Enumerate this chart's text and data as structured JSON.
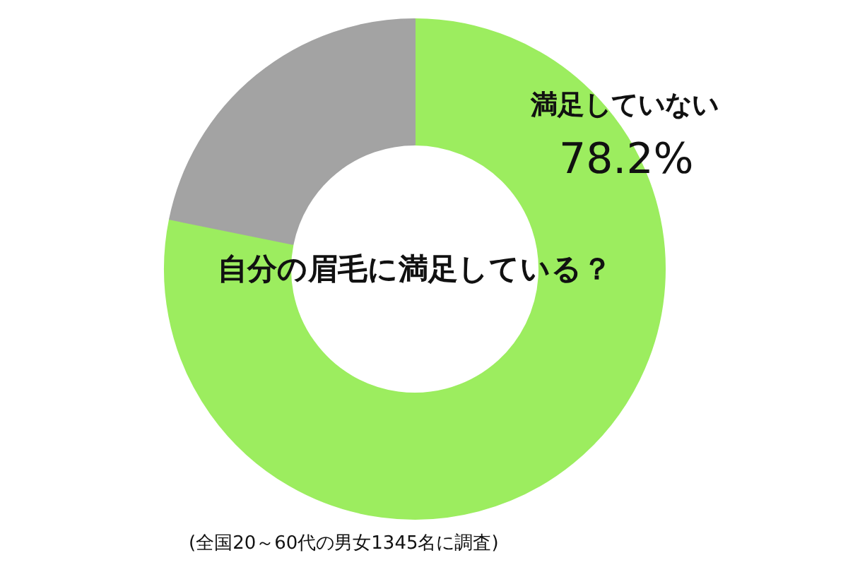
{
  "chart_data": {
    "type": "donut",
    "title": "自分の眉毛に満足している？",
    "categories": [
      "満足していない",
      null
    ],
    "values": [
      78.2,
      21.8
    ],
    "colors": [
      "#9ced5f",
      "#a3a3a3"
    ],
    "value_labels": [
      "78.2%",
      null
    ],
    "annotations": [
      "(全国20～60代の男女1345名に調査)"
    ]
  }
}
